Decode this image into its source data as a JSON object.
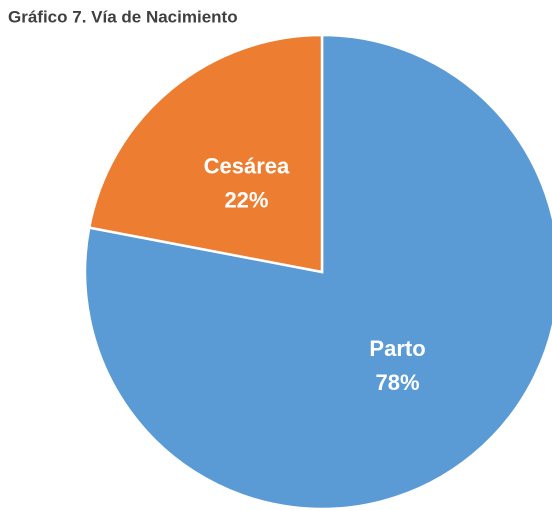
{
  "chart_data": {
    "type": "pie",
    "title": "Gráfico 7. Vía de Nacimiento",
    "categories": [
      "Parto",
      "Cesárea"
    ],
    "values": [
      78,
      22
    ],
    "value_labels": [
      "78%",
      "22%"
    ],
    "colors": [
      "#5b9bd5",
      "#ed7d31"
    ]
  }
}
